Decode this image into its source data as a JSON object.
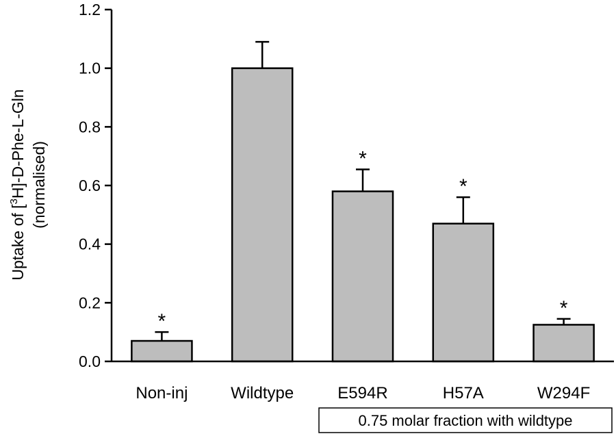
{
  "chart_data": {
    "type": "bar",
    "categories": [
      "Non-inj",
      "Wildtype",
      "E594R",
      "H57A",
      "W294F"
    ],
    "values": [
      0.07,
      1.0,
      0.58,
      0.47,
      0.125
    ],
    "errors": [
      0.03,
      0.09,
      0.075,
      0.09,
      0.02
    ],
    "significance": [
      "*",
      "",
      "*",
      "*",
      "*"
    ],
    "ylabel_line1_prefix": "Uptake of [",
    "ylabel_sup": "3",
    "ylabel_line1_suffix": "H]-D-Phe-L-Gln",
    "ylabel_line2": "(normalised)",
    "ylim": [
      0,
      1.2
    ],
    "yticks": [
      "0.0",
      "0.2",
      "0.4",
      "0.6",
      "0.8",
      "1.0",
      "1.2"
    ],
    "bar_color": "#bdbdbd",
    "annotation": "0.75 molar fraction with wildtype"
  }
}
